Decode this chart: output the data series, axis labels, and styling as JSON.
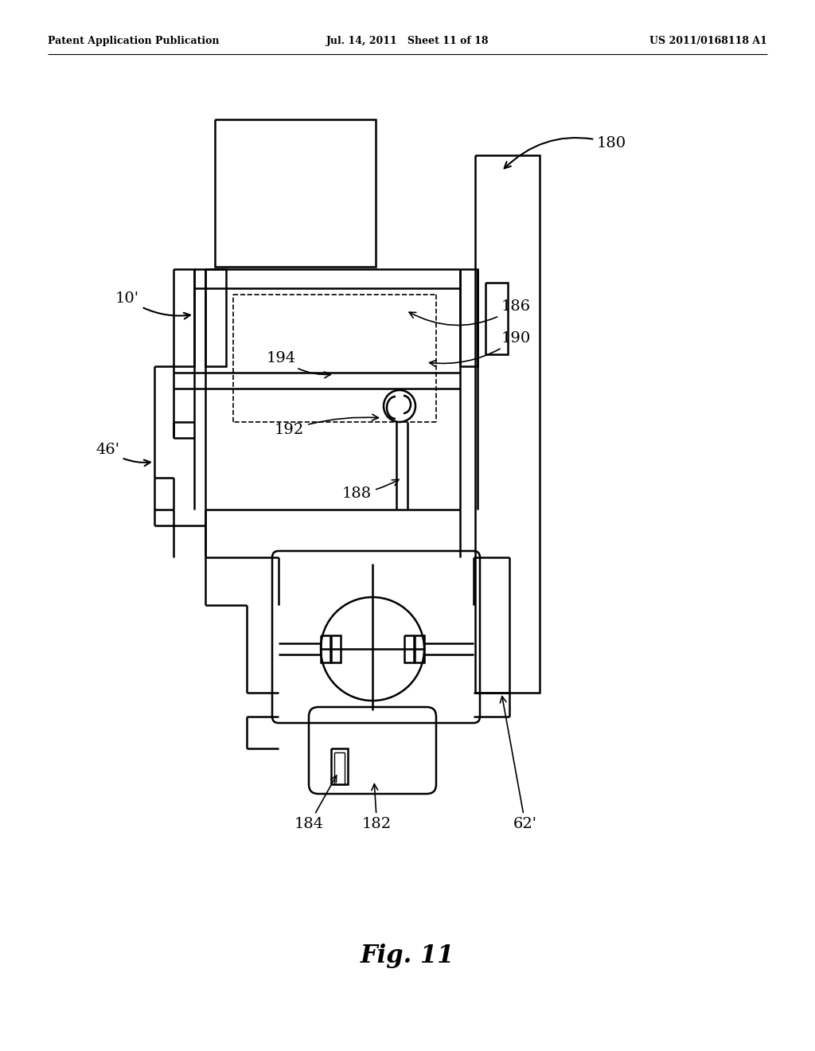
{
  "background_color": "#ffffff",
  "lc": "#000000",
  "lw": 1.8,
  "header_left": "Patent Application Publication",
  "header_center": "Jul. 14, 2011   Sheet 11 of 18",
  "header_right": "US 2011/0168118 A1",
  "fig_label": "Fig. 11"
}
